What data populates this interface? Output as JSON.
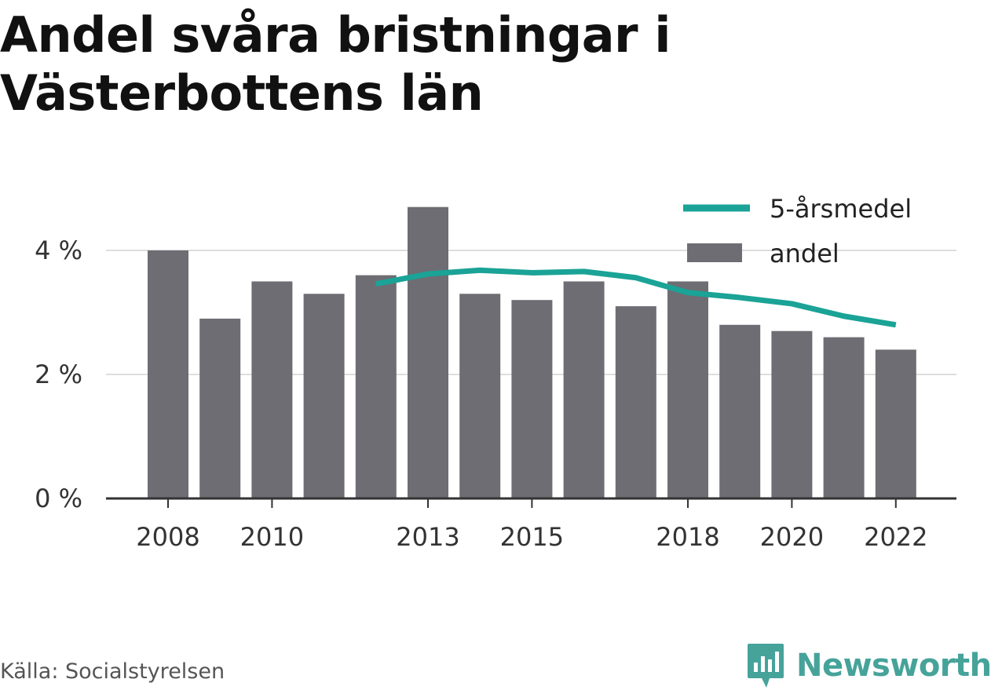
{
  "title_lines": [
    "Andel svåra bristningar i",
    "Västerbottens län"
  ],
  "source": "Källa: Socialstyrelsen",
  "brand": {
    "name": "Newsworthy",
    "icon": "newsworthy-logo-icon",
    "color": "#46a39a"
  },
  "colors": {
    "bar": "#6e6d73",
    "line": "#1aa396",
    "grid": "#dddddd",
    "axis": "#333333"
  },
  "chart_data": {
    "type": "bar",
    "title": "Andel svåra bristningar i Västerbottens län",
    "xlabel": "",
    "ylabel": "",
    "x": [
      2008,
      2009,
      2010,
      2011,
      2012,
      2013,
      2014,
      2015,
      2016,
      2017,
      2018,
      2019,
      2020,
      2021,
      2022
    ],
    "x_ticks": [
      2008,
      2010,
      2013,
      2015,
      2018,
      2020,
      2022
    ],
    "x_tick_labels": [
      "2008",
      "2010",
      "2013",
      "2015",
      "2018",
      "2020",
      "2022"
    ],
    "y_ticks": [
      0,
      2,
      4
    ],
    "y_tick_labels": [
      "0 %",
      "2 %",
      "4 %"
    ],
    "ylim": [
      0,
      5
    ],
    "grid": true,
    "legend_position": "top-right",
    "series": [
      {
        "name": "andel",
        "type": "bar",
        "values": [
          4.0,
          2.9,
          3.5,
          3.3,
          3.6,
          4.7,
          3.3,
          3.2,
          3.5,
          3.1,
          3.5,
          2.8,
          2.7,
          2.6,
          2.4
        ]
      },
      {
        "name": "5-årsmedel",
        "type": "line",
        "values": [
          null,
          null,
          null,
          null,
          3.46,
          3.62,
          3.68,
          3.64,
          3.66,
          3.56,
          3.32,
          3.24,
          3.14,
          2.94,
          2.8
        ]
      }
    ]
  }
}
